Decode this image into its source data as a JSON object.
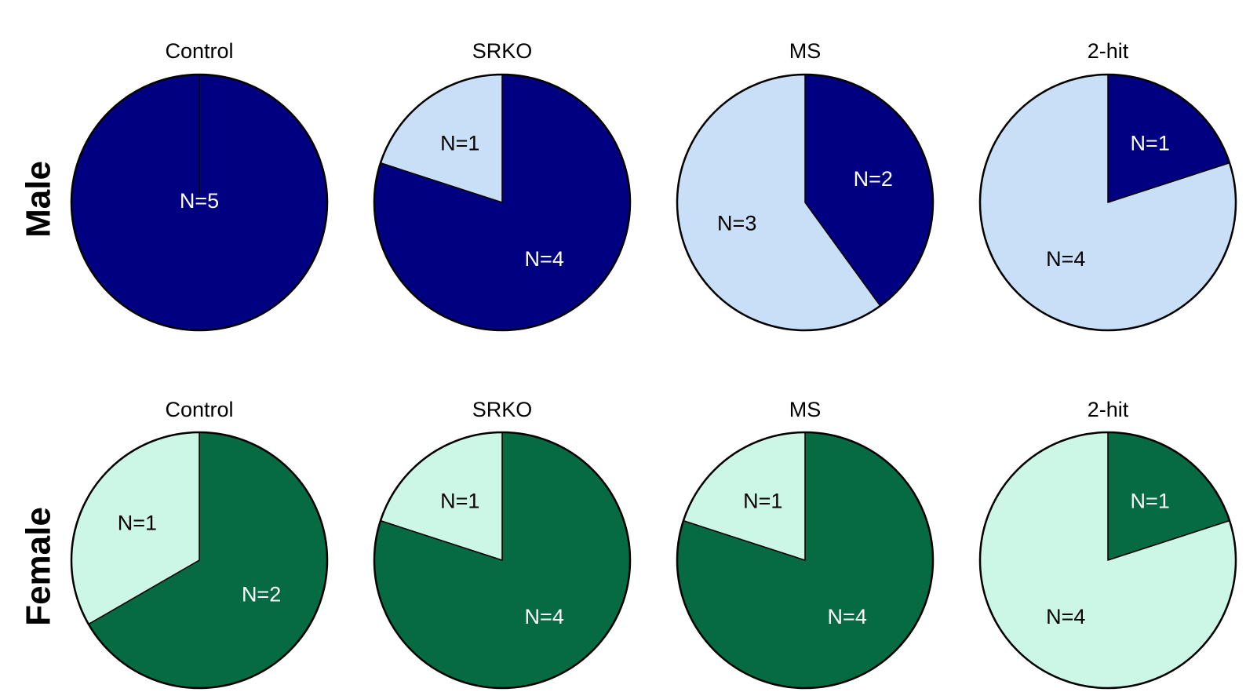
{
  "chart_data": [
    {
      "type": "pie",
      "row": "Male",
      "colors": {
        "dark": "#000080",
        "light": "#C9DEF7"
      },
      "panels": [
        {
          "title": "Control",
          "slices": [
            {
              "key": "dark",
              "value": 5,
              "label": "N=5"
            },
            {
              "key": "light",
              "value": 0,
              "label": ""
            }
          ]
        },
        {
          "title": "SRKO",
          "slices": [
            {
              "key": "dark",
              "value": 4,
              "label": "N=4"
            },
            {
              "key": "light",
              "value": 1,
              "label": "N=1"
            }
          ]
        },
        {
          "title": "MS",
          "slices": [
            {
              "key": "dark",
              "value": 2,
              "label": "N=2"
            },
            {
              "key": "light",
              "value": 3,
              "label": "N=3"
            }
          ]
        },
        {
          "title": "2-hit",
          "slices": [
            {
              "key": "dark",
              "value": 1,
              "label": "N=1"
            },
            {
              "key": "light",
              "value": 4,
              "label": "N=4"
            }
          ]
        }
      ]
    },
    {
      "type": "pie",
      "row": "Female",
      "colors": {
        "dark": "#066B42",
        "light": "#CCF6E6"
      },
      "panels": [
        {
          "title": "Control",
          "slices": [
            {
              "key": "dark",
              "value": 2,
              "label": "N=2"
            },
            {
              "key": "light",
              "value": 1,
              "label": "N=1"
            }
          ]
        },
        {
          "title": "SRKO",
          "slices": [
            {
              "key": "dark",
              "value": 4,
              "label": "N=4"
            },
            {
              "key": "light",
              "value": 1,
              "label": "N=1"
            }
          ]
        },
        {
          "title": "MS",
          "slices": [
            {
              "key": "dark",
              "value": 4,
              "label": "N=4"
            },
            {
              "key": "light",
              "value": 1,
              "label": "N=1"
            }
          ]
        },
        {
          "title": "2-hit",
          "slices": [
            {
              "key": "dark",
              "value": 1,
              "label": "N=1"
            },
            {
              "key": "light",
              "value": 4,
              "label": "N=4"
            }
          ]
        }
      ]
    }
  ]
}
